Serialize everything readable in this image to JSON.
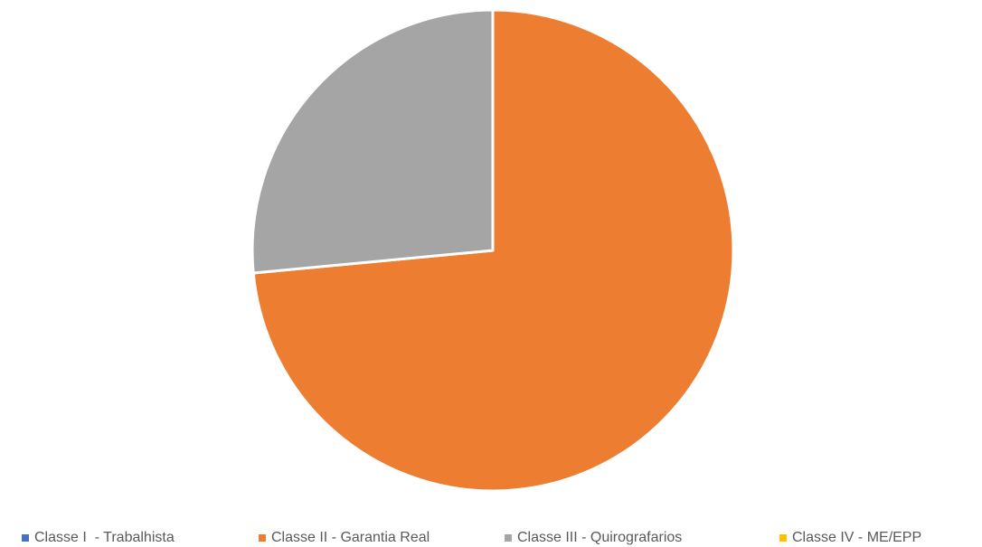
{
  "chart_data": {
    "type": "pie",
    "categories": [
      "Classe I  - Trabalhista",
      "Classe II - Garantia Real",
      "Classe III - Quirografarios",
      "Classe IV - ME/EPP"
    ],
    "values": [
      0,
      73.5,
      26.5,
      0
    ],
    "colors": [
      "#4472c4",
      "#ed7d31",
      "#a5a5a5",
      "#ffc000"
    ],
    "legend_position": "bottom",
    "start_angle": "12 o'clock",
    "direction": "clockwise"
  }
}
